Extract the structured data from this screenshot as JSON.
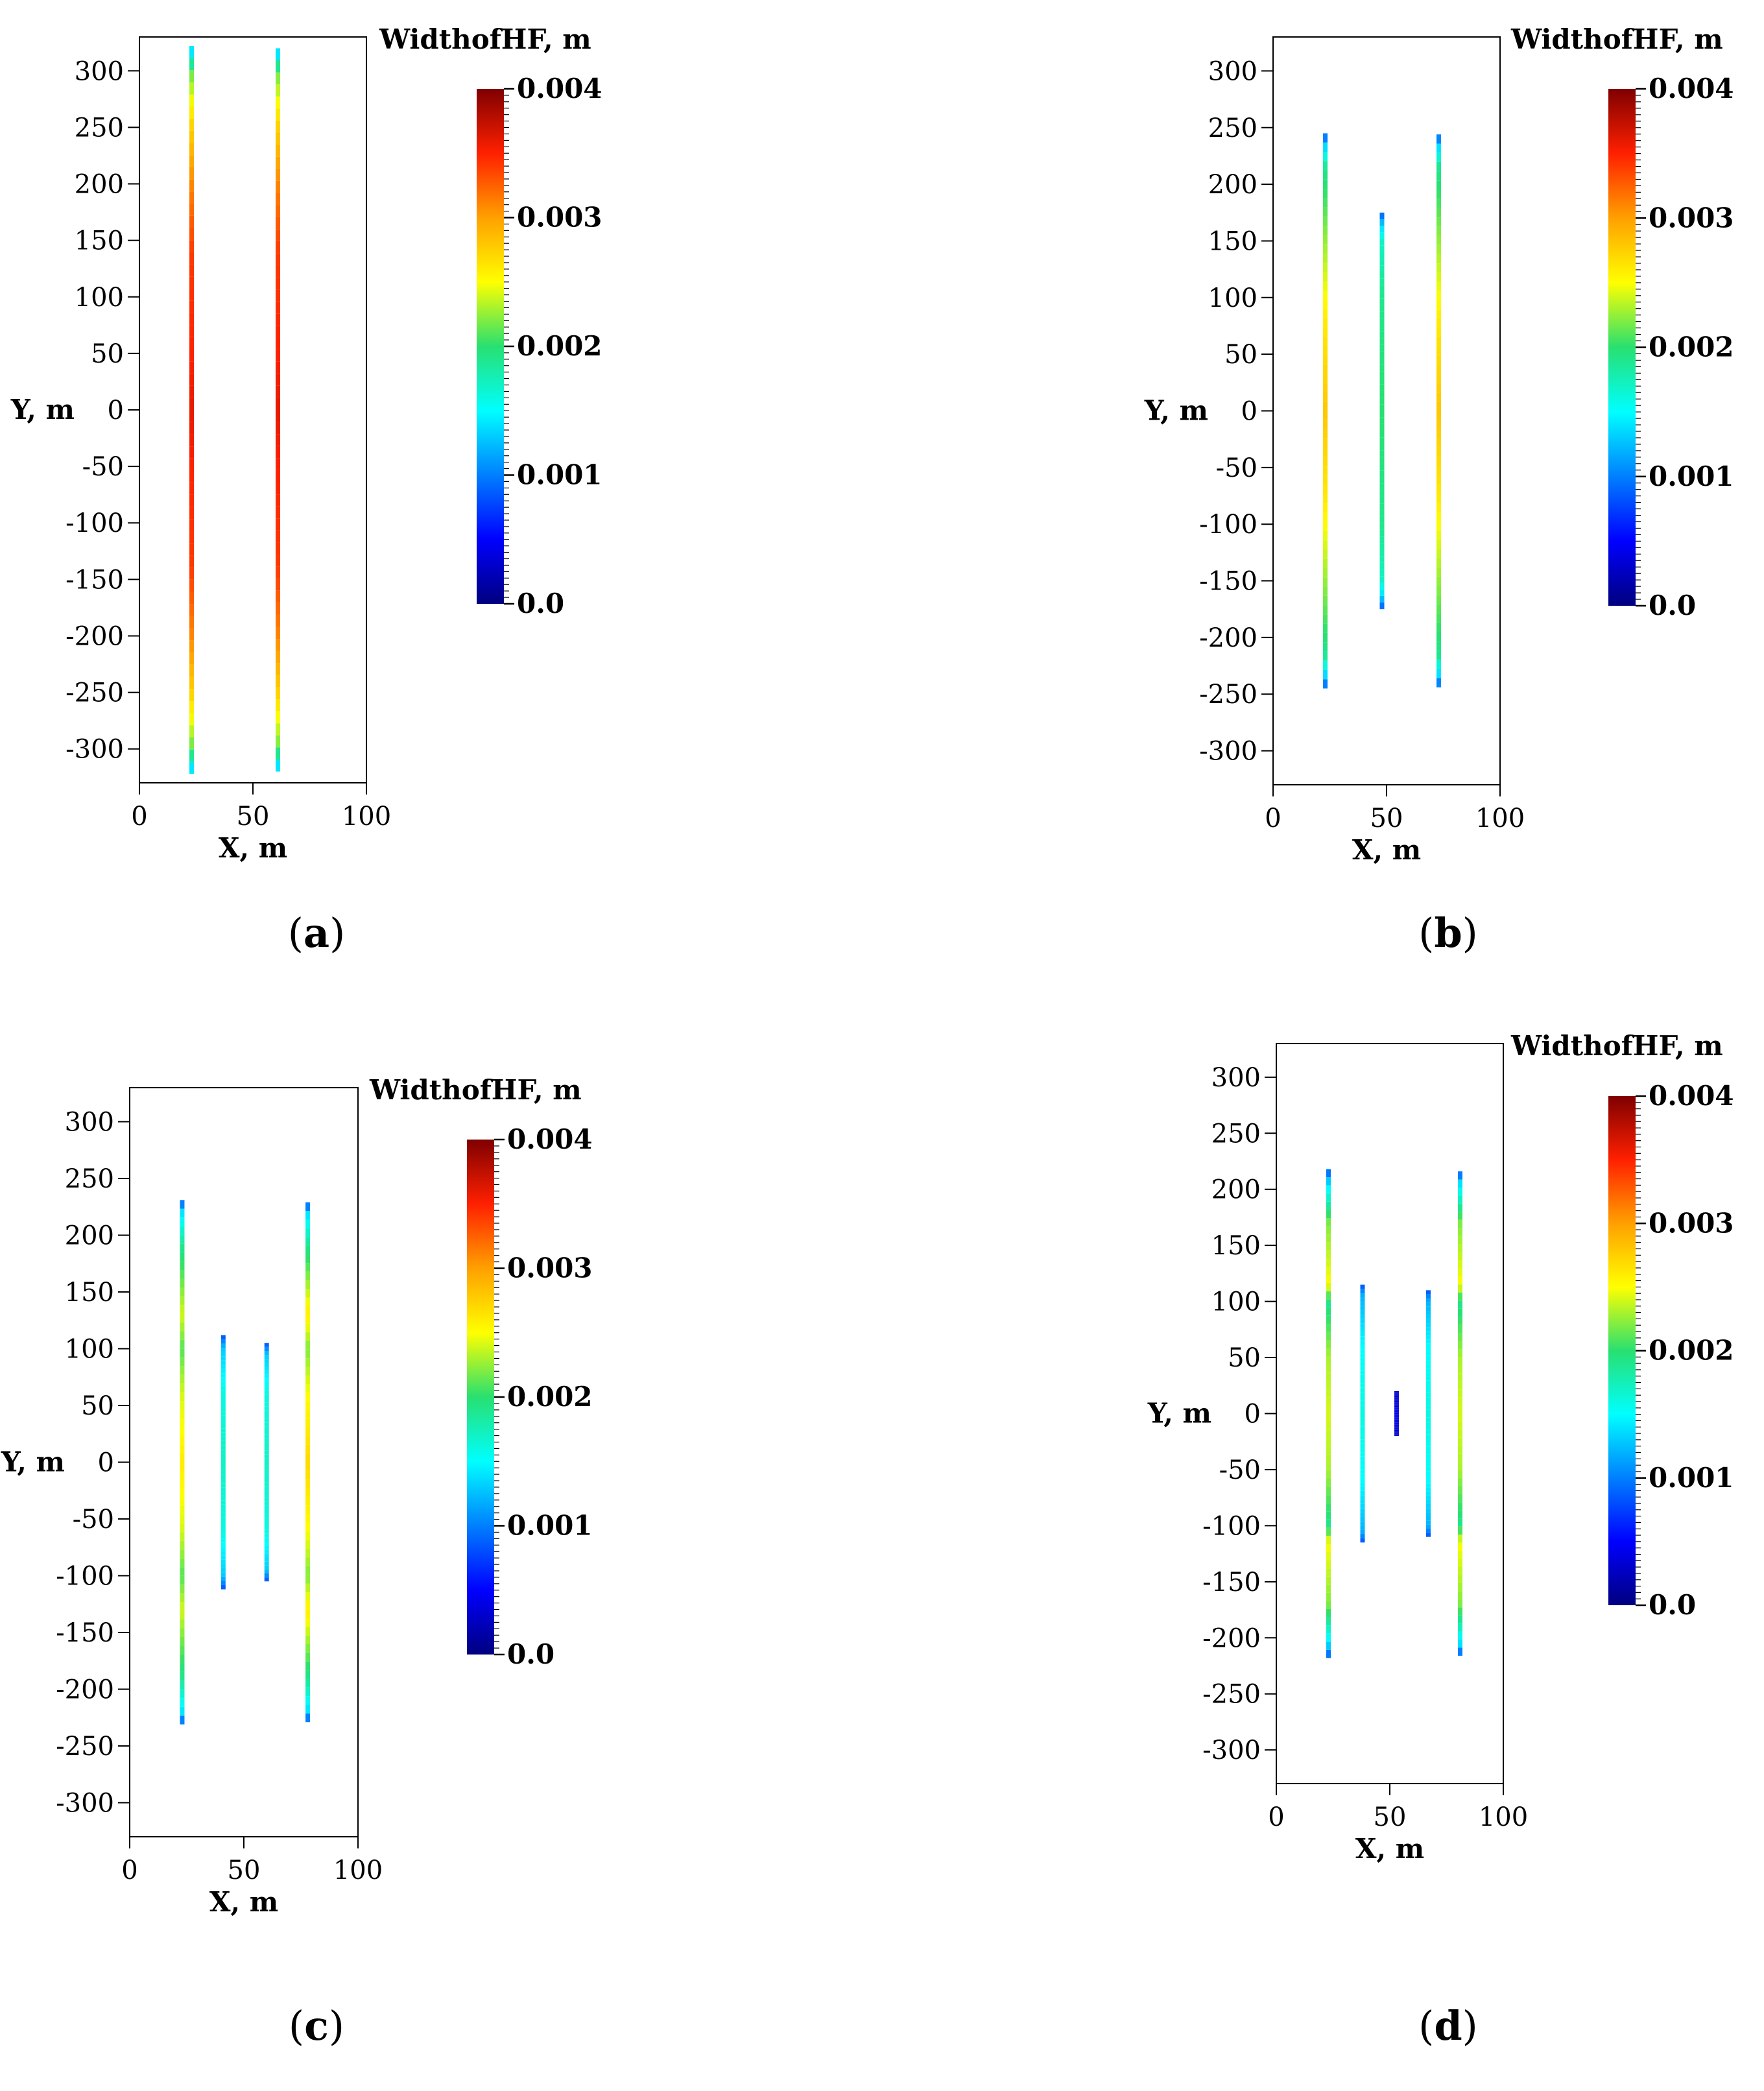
{
  "figure_name": "hydraulic-fracture-width-panels",
  "chart_data": [
    {
      "type": "fracture-map",
      "caption_letter": "a",
      "xlabel": "X, m",
      "ylabel": "Y, m",
      "xlim": [
        0,
        100
      ],
      "ylim": [
        -330,
        330
      ],
      "xticks": [
        0,
        50,
        100
      ],
      "yticks": [
        300,
        250,
        200,
        150,
        100,
        50,
        0,
        -50,
        -100,
        -150,
        -200,
        -250,
        -300
      ],
      "ytick_labels": [
        "300",
        "250",
        "200",
        "150",
        "100",
        "50",
        "0",
        "-50",
        "-100",
        "-150",
        "-200",
        "-250",
        "-300"
      ],
      "xtick_labels": [
        "0",
        "50",
        "100"
      ],
      "colorbar": {
        "title": "WidthofHF, m",
        "min": 0,
        "max": 0.004,
        "labels": [
          "0.004",
          "0.003",
          "0.002",
          "0.001",
          "0.0"
        ]
      },
      "fractures": [
        {
          "x": 23,
          "half_length": 322,
          "profile": [
            [
              -322,
              0.0008
            ],
            [
              -315,
              0.0016
            ],
            [
              -295,
              0.0022
            ],
            [
              -255,
              0.0027
            ],
            [
              -200,
              0.0031
            ],
            [
              -140,
              0.0034
            ],
            [
              -50,
              0.0035
            ],
            [
              0,
              0.0036
            ],
            [
              50,
              0.0035
            ],
            [
              140,
              0.0034
            ],
            [
              200,
              0.0031
            ],
            [
              255,
              0.0027
            ],
            [
              295,
              0.0022
            ],
            [
              315,
              0.0016
            ],
            [
              322,
              0.0008
            ]
          ]
        },
        {
          "x": 61,
          "half_length": 320,
          "profile": [
            [
              -320,
              0.0008
            ],
            [
              -313,
              0.0016
            ],
            [
              -295,
              0.0022
            ],
            [
              -255,
              0.0027
            ],
            [
              -200,
              0.0031
            ],
            [
              -140,
              0.0034
            ],
            [
              -50,
              0.0035
            ],
            [
              0,
              0.0036
            ],
            [
              50,
              0.0035
            ],
            [
              140,
              0.0034
            ],
            [
              200,
              0.0031
            ],
            [
              255,
              0.0027
            ],
            [
              295,
              0.0022
            ],
            [
              313,
              0.0016
            ],
            [
              320,
              0.0008
            ]
          ]
        }
      ]
    },
    {
      "type": "fracture-map",
      "caption_letter": "b",
      "xlabel": "X, m",
      "ylabel": "Y, m",
      "xlim": [
        0,
        100
      ],
      "ylim": [
        -330,
        330
      ],
      "xticks": [
        0,
        50,
        100
      ],
      "yticks": [
        300,
        250,
        200,
        150,
        100,
        50,
        0,
        -50,
        -100,
        -150,
        -200,
        -250,
        -300
      ],
      "ytick_labels": [
        "300",
        "250",
        "200",
        "150",
        "100",
        "50",
        "0",
        "-50",
        "-100",
        "-150",
        "-200",
        "-250",
        "-300"
      ],
      "xtick_labels": [
        "0",
        "50",
        "100"
      ],
      "colorbar": {
        "title": "WidthofHF, m",
        "min": 0,
        "max": 0.004,
        "labels": [
          "0.004",
          "0.003",
          "0.002",
          "0.001",
          "0.0"
        ]
      },
      "fractures": [
        {
          "x": 23,
          "half_length": 245,
          "profile": [
            [
              -245,
              0.0008
            ],
            [
              -235,
              0.0013
            ],
            [
              -215,
              0.0019
            ],
            [
              -160,
              0.0022
            ],
            [
              -80,
              0.0026
            ],
            [
              0,
              0.0028
            ],
            [
              80,
              0.0026
            ],
            [
              160,
              0.0022
            ],
            [
              215,
              0.0019
            ],
            [
              235,
              0.0013
            ],
            [
              245,
              0.0008
            ]
          ]
        },
        {
          "x": 48,
          "half_length": 175,
          "profile": [
            [
              -175,
              0.0008
            ],
            [
              -165,
              0.0013
            ],
            [
              -150,
              0.0017
            ],
            [
              -100,
              0.0019
            ],
            [
              0,
              0.002
            ],
            [
              100,
              0.0019
            ],
            [
              150,
              0.0017
            ],
            [
              165,
              0.0013
            ],
            [
              175,
              0.0008
            ]
          ]
        },
        {
          "x": 73,
          "half_length": 244,
          "profile": [
            [
              -244,
              0.0008
            ],
            [
              -235,
              0.0013
            ],
            [
              -215,
              0.0019
            ],
            [
              -160,
              0.0022
            ],
            [
              -80,
              0.0026
            ],
            [
              0,
              0.0028
            ],
            [
              80,
              0.0026
            ],
            [
              160,
              0.0022
            ],
            [
              215,
              0.0019
            ],
            [
              235,
              0.0013
            ],
            [
              244,
              0.0008
            ]
          ]
        }
      ]
    },
    {
      "type": "fracture-map",
      "caption_letter": "c",
      "xlabel": "X, m",
      "ylabel": "Y, m",
      "xlim": [
        0,
        100
      ],
      "ylim": [
        -330,
        330
      ],
      "xticks": [
        0,
        50,
        100
      ],
      "yticks": [
        300,
        250,
        200,
        150,
        100,
        50,
        0,
        -50,
        -100,
        -150,
        -200,
        -250,
        -300
      ],
      "ytick_labels": [
        "300",
        "250",
        "200",
        "150",
        "100",
        "50",
        "0",
        "-50",
        "-100",
        "-150",
        "-200",
        "-250",
        "-300"
      ],
      "xtick_labels": [
        "0",
        "50",
        "100"
      ],
      "colorbar": {
        "title": "WidthofHF, m",
        "min": 0,
        "max": 0.004,
        "labels": [
          "0.004",
          "0.003",
          "0.002",
          "0.001",
          "0.0"
        ]
      },
      "fractures": [
        {
          "x": 23,
          "half_length": 231,
          "profile": [
            [
              -231,
              0.0008
            ],
            [
              -220,
              0.0014
            ],
            [
              -190,
              0.0019
            ],
            [
              -130,
              0.0024
            ],
            [
              -100,
              0.0021
            ],
            [
              -60,
              0.0024
            ],
            [
              0,
              0.0026
            ],
            [
              60,
              0.0024
            ],
            [
              100,
              0.0021
            ],
            [
              130,
              0.0024
            ],
            [
              190,
              0.0019
            ],
            [
              220,
              0.0014
            ],
            [
              231,
              0.0008
            ]
          ]
        },
        {
          "x": 41,
          "half_length": 112,
          "profile": [
            [
              -112,
              0.0008
            ],
            [
              -100,
              0.0013
            ],
            [
              -60,
              0.0016
            ],
            [
              0,
              0.0017
            ],
            [
              60,
              0.0016
            ],
            [
              100,
              0.0013
            ],
            [
              112,
              0.0008
            ]
          ]
        },
        {
          "x": 60,
          "half_length": 105,
          "profile": [
            [
              -105,
              0.0008
            ],
            [
              -95,
              0.0013
            ],
            [
              -60,
              0.0016
            ],
            [
              0,
              0.0017
            ],
            [
              60,
              0.0016
            ],
            [
              95,
              0.0013
            ],
            [
              105,
              0.0008
            ]
          ]
        },
        {
          "x": 78,
          "half_length": 229,
          "profile": [
            [
              -229,
              0.0008
            ],
            [
              -218,
              0.0014
            ],
            [
              -190,
              0.0019
            ],
            [
              -130,
              0.0026
            ],
            [
              -100,
              0.0022
            ],
            [
              -60,
              0.0025
            ],
            [
              0,
              0.0027
            ],
            [
              60,
              0.0025
            ],
            [
              100,
              0.0022
            ],
            [
              130,
              0.0026
            ],
            [
              190,
              0.0019
            ],
            [
              218,
              0.0014
            ],
            [
              229,
              0.0008
            ]
          ]
        }
      ]
    },
    {
      "type": "fracture-map",
      "caption_letter": "d",
      "xlabel": "X, m",
      "ylabel": "Y, m",
      "xlim": [
        0,
        100
      ],
      "ylim": [
        -330,
        330
      ],
      "xticks": [
        0,
        50,
        100
      ],
      "yticks": [
        300,
        250,
        200,
        150,
        100,
        50,
        0,
        -50,
        -100,
        -150,
        -200,
        -250,
        -300
      ],
      "ytick_labels": [
        "300",
        "250",
        "200",
        "150",
        "100",
        "50",
        "0",
        "-50",
        "-100",
        "-150",
        "-200",
        "-250",
        "-300"
      ],
      "xtick_labels": [
        "0",
        "50",
        "100"
      ],
      "colorbar": {
        "title": "WidthofHF, m",
        "min": 0,
        "max": 0.004,
        "labels": [
          "0.004",
          "0.003",
          "0.002",
          "0.001",
          "0.0"
        ]
      },
      "fractures": [
        {
          "x": 23,
          "half_length": 218,
          "profile": [
            [
              -218,
              0.0008
            ],
            [
              -205,
              0.0014
            ],
            [
              -170,
              0.0022
            ],
            [
              -115,
              0.0025
            ],
            [
              -100,
              0.0019
            ],
            [
              -50,
              0.0023
            ],
            [
              0,
              0.0024
            ],
            [
              50,
              0.0023
            ],
            [
              100,
              0.0019
            ],
            [
              115,
              0.0025
            ],
            [
              170,
              0.0022
            ],
            [
              205,
              0.0014
            ],
            [
              218,
              0.0008
            ]
          ]
        },
        {
          "x": 38,
          "half_length": 115,
          "profile": [
            [
              -115,
              0.0008
            ],
            [
              -105,
              0.0012
            ],
            [
              -60,
              0.0015
            ],
            [
              0,
              0.0016
            ],
            [
              60,
              0.0015
            ],
            [
              105,
              0.0012
            ],
            [
              115,
              0.0008
            ]
          ]
        },
        {
          "x": 53,
          "half_length": 20,
          "profile": [
            [
              -20,
              0.0003
            ],
            [
              0,
              0.0004
            ],
            [
              20,
              0.0003
            ]
          ]
        },
        {
          "x": 67,
          "half_length": 110,
          "profile": [
            [
              -110,
              0.0008
            ],
            [
              -100,
              0.0012
            ],
            [
              -60,
              0.0015
            ],
            [
              0,
              0.0016
            ],
            [
              60,
              0.0015
            ],
            [
              100,
              0.0012
            ],
            [
              110,
              0.0008
            ]
          ]
        },
        {
          "x": 81,
          "half_length": 216,
          "profile": [
            [
              -216,
              0.0008
            ],
            [
              -205,
              0.0014
            ],
            [
              -170,
              0.0022
            ],
            [
              -115,
              0.0025
            ],
            [
              -100,
              0.0019
            ],
            [
              -50,
              0.0023
            ],
            [
              0,
              0.0024
            ],
            [
              50,
              0.0023
            ],
            [
              100,
              0.0019
            ],
            [
              115,
              0.0025
            ],
            [
              170,
              0.0022
            ],
            [
              205,
              0.0014
            ],
            [
              216,
              0.0008
            ]
          ]
        }
      ]
    }
  ]
}
